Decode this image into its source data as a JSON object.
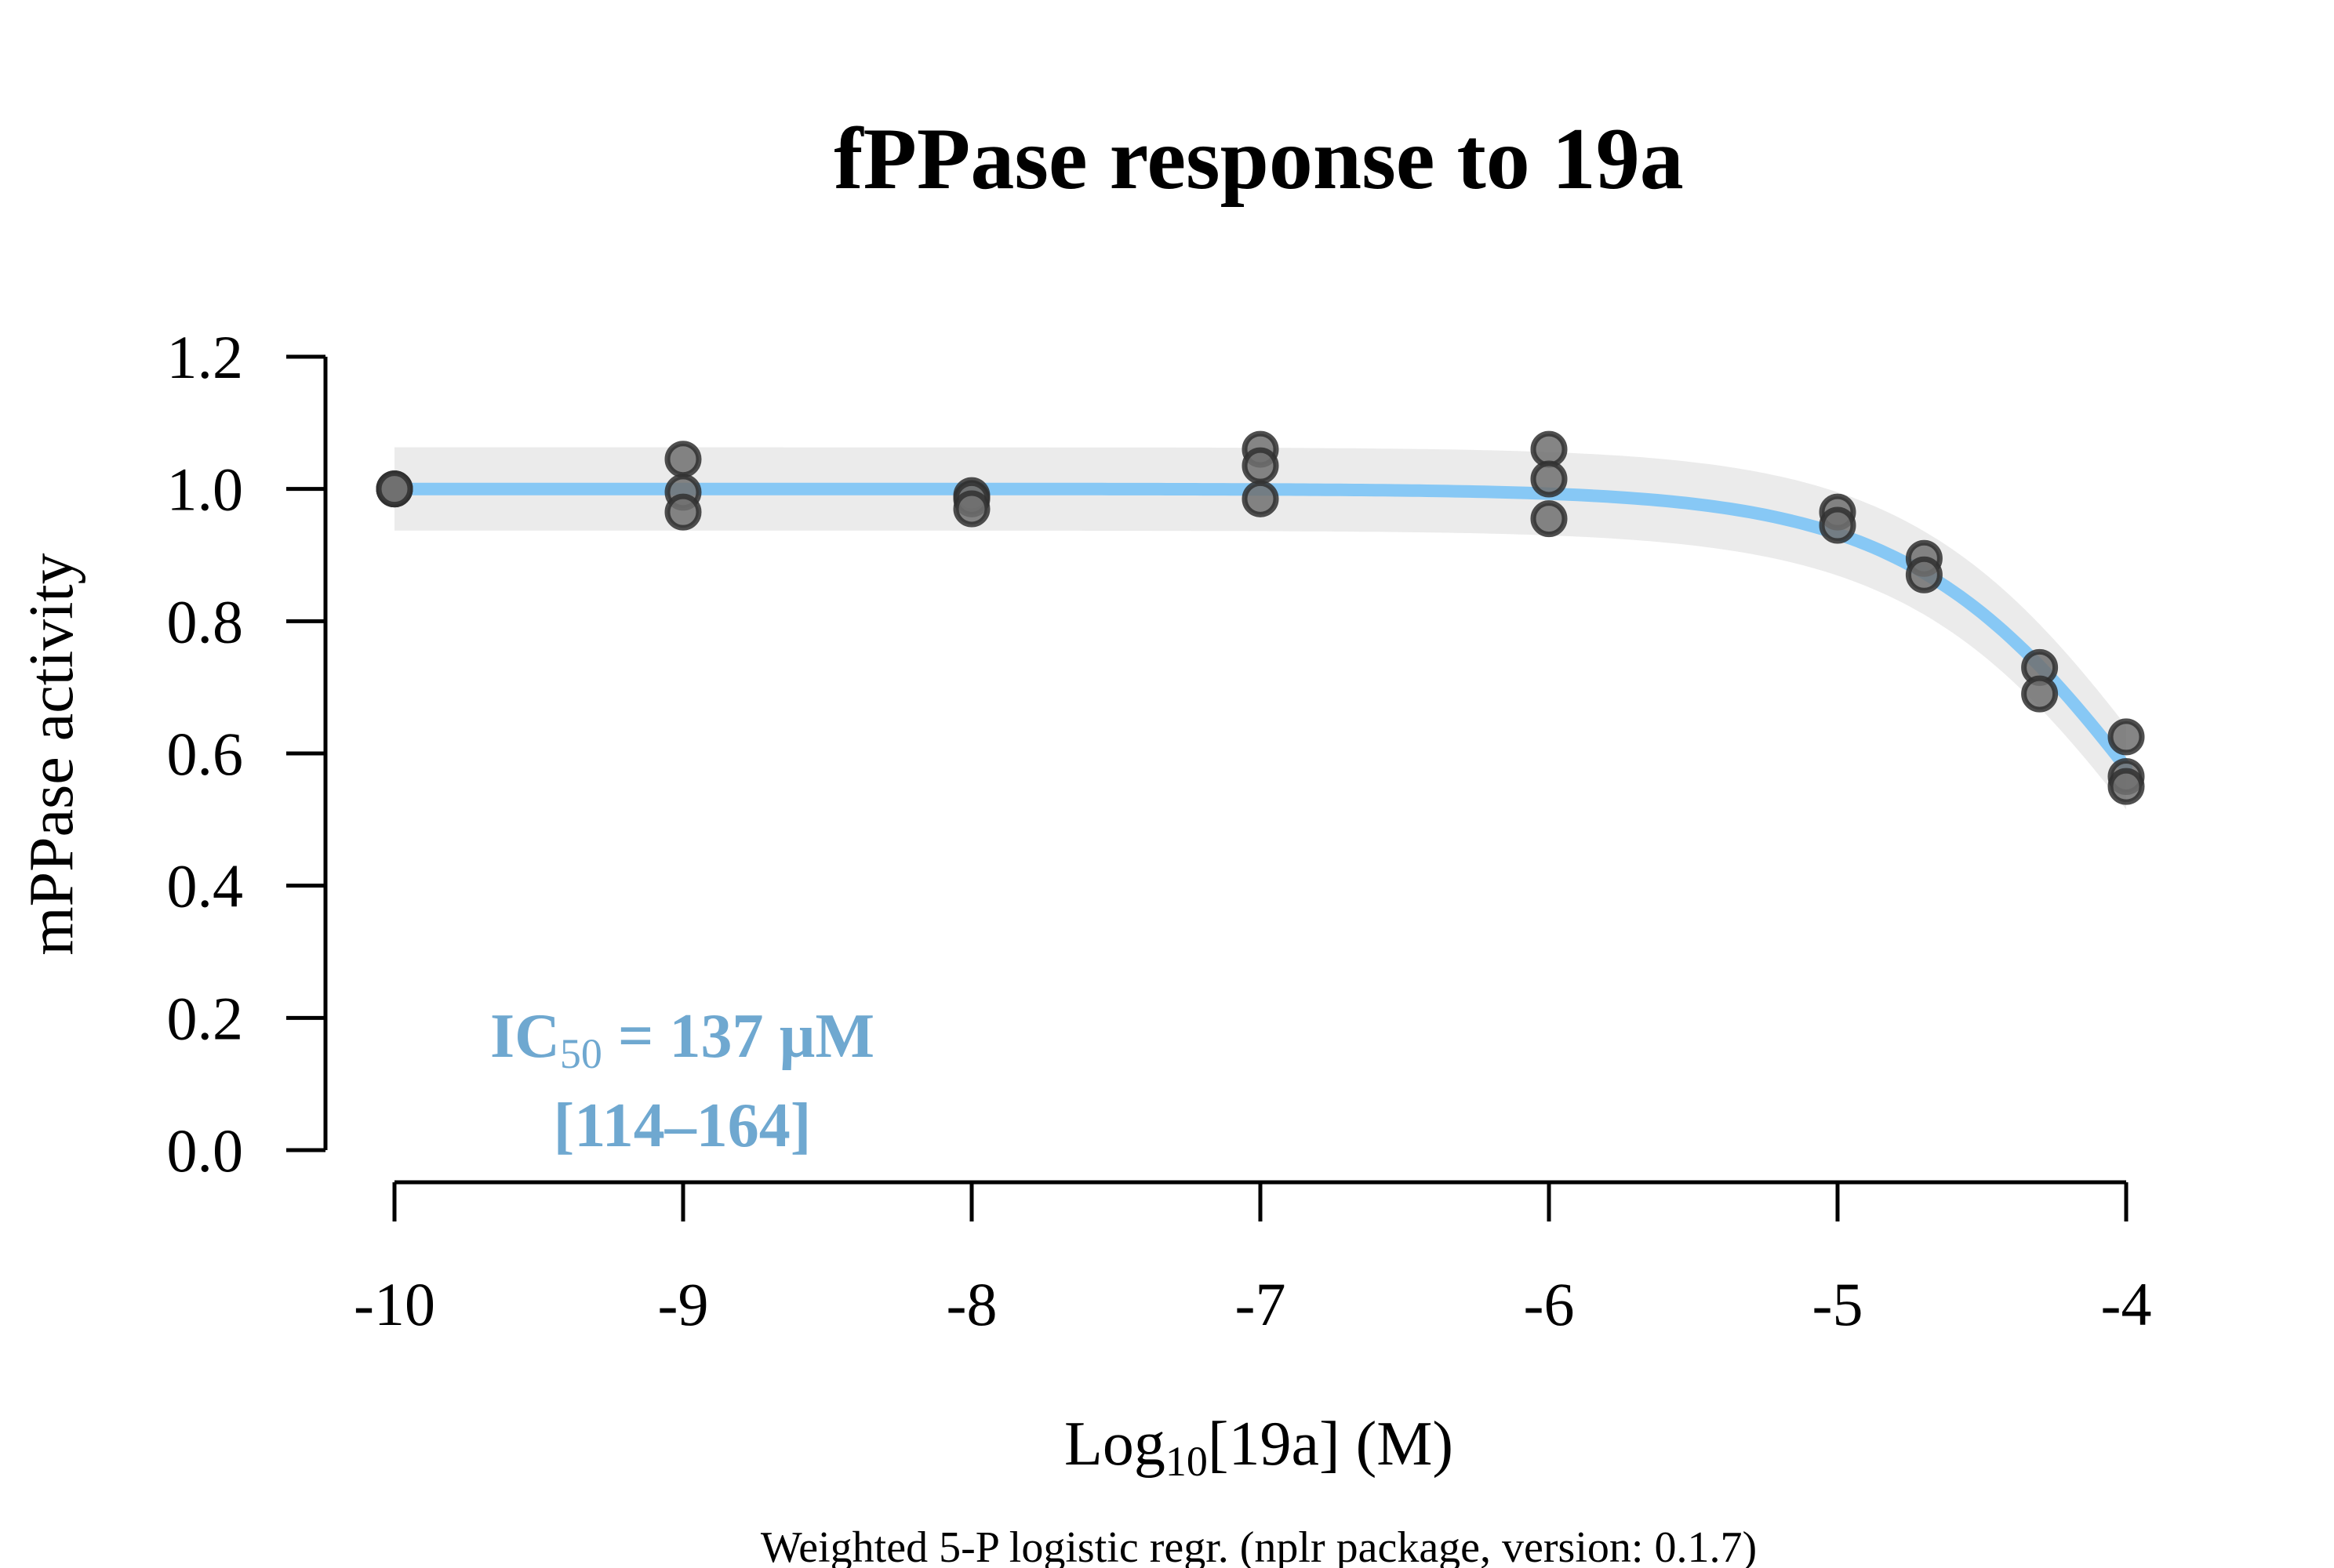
{
  "chart_data": {
    "type": "scatter",
    "title": "fPPase response to 19a",
    "ylabel": "mPPase activity",
    "xlabel": {
      "prefix": "Log",
      "subscript": "10",
      "suffix": "[19a] (M)"
    },
    "footer": "Weighted 5-P logistic regr. (nplr package, version: 0.1.7)",
    "annotation": {
      "line1_prefix": "IC",
      "line1_subscript": "50",
      "line1_suffix": " = 137 µM",
      "line2": "[114–164]",
      "color": "#6fa8d0"
    },
    "xlim": [
      -10,
      -4
    ],
    "ylim": [
      0,
      1.2
    ],
    "x_ticks": [
      {
        "value": -10,
        "label": "-10"
      },
      {
        "value": -9,
        "label": "-9"
      },
      {
        "value": -8,
        "label": "-8"
      },
      {
        "value": -7,
        "label": "-7"
      },
      {
        "value": -6,
        "label": "-6"
      },
      {
        "value": -5,
        "label": "-5"
      },
      {
        "value": -4,
        "label": "-4"
      }
    ],
    "y_ticks": [
      {
        "value": 0.0,
        "label": "0.0"
      },
      {
        "value": 0.2,
        "label": "0.2"
      },
      {
        "value": 0.4,
        "label": "0.4"
      },
      {
        "value": 0.6,
        "label": "0.6"
      },
      {
        "value": 0.8,
        "label": "0.8"
      },
      {
        "value": 1.0,
        "label": "1.0"
      },
      {
        "value": 1.2,
        "label": "1.2"
      }
    ],
    "points": [
      {
        "x": -10,
        "y": 1.0
      },
      {
        "x": -10,
        "y": 1.0
      },
      {
        "x": -10,
        "y": 1.0
      },
      {
        "x": -9,
        "y": 1.045
      },
      {
        "x": -9,
        "y": 0.995
      },
      {
        "x": -9,
        "y": 0.965
      },
      {
        "x": -8,
        "y": 0.99
      },
      {
        "x": -8,
        "y": 0.985
      },
      {
        "x": -8,
        "y": 0.97
      },
      {
        "x": -7,
        "y": 1.06
      },
      {
        "x": -7,
        "y": 1.035
      },
      {
        "x": -7,
        "y": 0.985
      },
      {
        "x": -6,
        "y": 1.06
      },
      {
        "x": -6,
        "y": 1.015
      },
      {
        "x": -6,
        "y": 0.955
      },
      {
        "x": -5,
        "y": 0.965
      },
      {
        "x": -5,
        "y": 0.945
      },
      {
        "x": -4.7,
        "y": 0.895
      },
      {
        "x": -4.7,
        "y": 0.87
      },
      {
        "x": -4.3,
        "y": 0.73
      },
      {
        "x": -4.3,
        "y": 0.69
      },
      {
        "x": -4,
        "y": 0.625
      },
      {
        "x": -4,
        "y": 0.565
      },
      {
        "x": -4,
        "y": 0.55
      }
    ],
    "fit": {
      "model": "5-parameter logistic",
      "bottom": 0,
      "top": 1.0,
      "log_ic50": -3.863,
      "hill": 1.0,
      "s": 1.0,
      "band_halfwidth": 0.063,
      "curve_color": "#87c8f5",
      "band_color": "#ebebeb"
    },
    "point_fill": "#707070",
    "point_stroke": "#303030",
    "grid": false
  }
}
